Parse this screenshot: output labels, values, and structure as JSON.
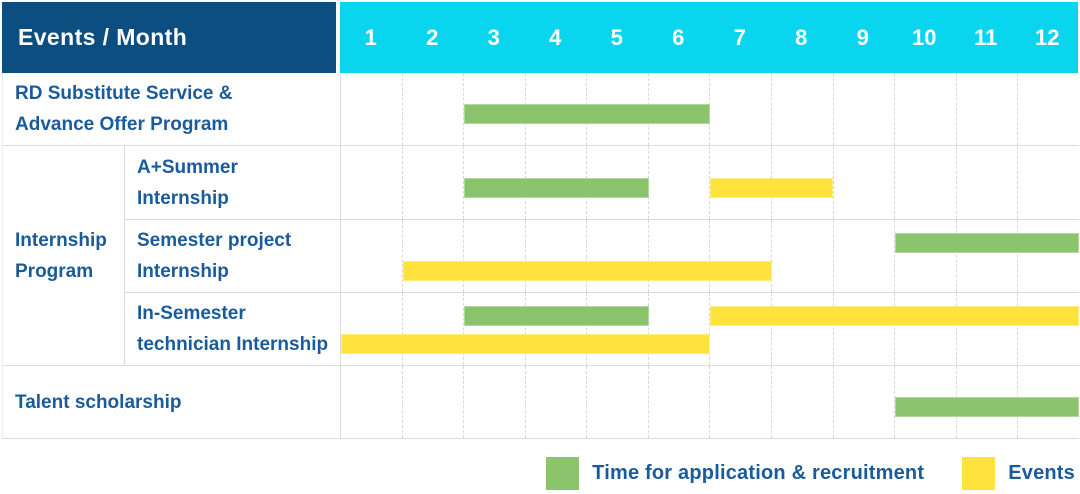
{
  "header": {
    "title": "Events / Month",
    "months": [
      "1",
      "2",
      "3",
      "4",
      "5",
      "6",
      "7",
      "8",
      "9",
      "10",
      "11",
      "12"
    ]
  },
  "colors": {
    "navy": "#0d4e80",
    "cyan": "#0ad5ef",
    "labelblue": "#1a5b9c",
    "green": "#8bc46c",
    "yellow": "#ffe23c",
    "grid": "#d8d8d8"
  },
  "group": {
    "label_lines": [
      "Internship",
      "Program"
    ]
  },
  "rows": [
    {
      "kind": "single",
      "label_lines": [
        "RD Substitute Service &",
        "Advance Offer Program"
      ],
      "bars": [
        {
          "color_key": "green",
          "start": 3,
          "end": 6,
          "lane": "center"
        }
      ]
    },
    {
      "kind": "sub",
      "group_start": true,
      "label_lines": [
        "A+Summer",
        "Internship"
      ],
      "bars": [
        {
          "color_key": "green",
          "start": 3,
          "end": 5,
          "lane": "center"
        },
        {
          "color_key": "yellow",
          "start": 7,
          "end": 8,
          "lane": "center"
        }
      ]
    },
    {
      "kind": "sub",
      "label_lines": [
        "Semester project",
        "Internship"
      ],
      "bars": [
        {
          "color_key": "green",
          "start": 10,
          "end": 12,
          "lane": "top"
        },
        {
          "color_key": "yellow",
          "start": 2,
          "end": 7,
          "lane": "bottom"
        }
      ]
    },
    {
      "kind": "sub",
      "label_lines": [
        "In-Semester",
        "technician Internship"
      ],
      "bars": [
        {
          "color_key": "green",
          "start": 3,
          "end": 5,
          "lane": "top"
        },
        {
          "color_key": "yellow",
          "start": 7,
          "end": 12,
          "lane": "top"
        },
        {
          "color_key": "yellow",
          "start": 1,
          "end": 6,
          "lane": "bottom"
        }
      ]
    },
    {
      "kind": "single",
      "label_lines": [
        "Talent scholarship"
      ],
      "bars": [
        {
          "color_key": "green",
          "start": 10,
          "end": 12,
          "lane": "center"
        }
      ]
    }
  ],
  "legend": [
    {
      "color_key": "green",
      "label": "Time for application & recruitment"
    },
    {
      "color_key": "yellow",
      "label": "Events"
    }
  ],
  "chart_data": {
    "type": "table",
    "title": "Events / Month",
    "x_axis": {
      "label": "Month",
      "ticks": [
        1,
        2,
        3,
        4,
        5,
        6,
        7,
        8,
        9,
        10,
        11,
        12
      ],
      "range": [
        1,
        12
      ]
    },
    "grid": true,
    "legend_position": "bottom-right",
    "legend": [
      "Time for application & recruitment",
      "Events"
    ],
    "series_colors": {
      "Time for application & recruitment": "#8bc46c",
      "Events": "#ffe23c"
    },
    "rows": [
      {
        "event": "RD Substitute Service & Advance Offer Program",
        "group": null,
        "application_recruitment_months": [
          [
            3,
            6
          ]
        ],
        "events_months": []
      },
      {
        "event": "A+Summer Internship",
        "group": "Internship Program",
        "application_recruitment_months": [
          [
            3,
            5
          ]
        ],
        "events_months": [
          [
            7,
            8
          ]
        ]
      },
      {
        "event": "Semester project Internship",
        "group": "Internship Program",
        "application_recruitment_months": [
          [
            10,
            12
          ]
        ],
        "events_months": [
          [
            2,
            7
          ]
        ]
      },
      {
        "event": "In-Semester technician Internship",
        "group": "Internship Program",
        "application_recruitment_months": [
          [
            3,
            5
          ]
        ],
        "events_months": [
          [
            7,
            12
          ],
          [
            1,
            6
          ]
        ]
      },
      {
        "event": "Talent scholarship",
        "group": null,
        "application_recruitment_months": [
          [
            10,
            12
          ]
        ],
        "events_months": []
      }
    ]
  }
}
